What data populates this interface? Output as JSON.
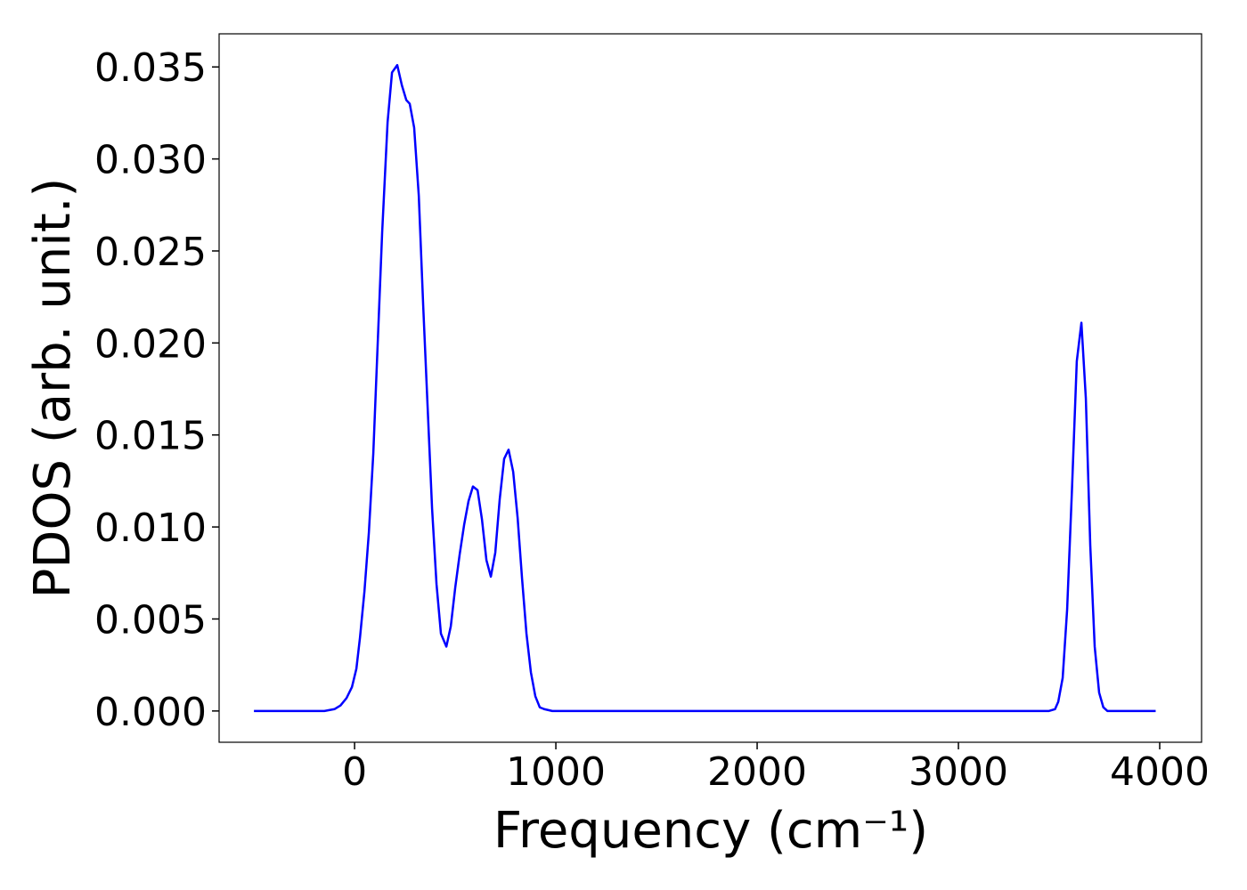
{
  "chart_data": {
    "type": "line",
    "xlabel": "Frequency (cm⁻¹)",
    "ylabel": "PDOS (arb. unit.)",
    "x": [
      -500,
      -400,
      -300,
      -200,
      -150,
      -100,
      -70,
      -40,
      -13,
      9,
      27,
      49,
      71,
      93,
      115,
      137,
      164,
      186,
      212,
      235,
      257,
      274,
      296,
      319,
      341,
      363,
      385,
      407,
      429,
      456,
      478,
      500,
      522,
      544,
      566,
      588,
      611,
      633,
      655,
      677,
      699,
      721,
      743,
      765,
      788,
      810,
      832,
      854,
      876,
      898,
      920,
      942,
      982,
      1500,
      2000,
      2500,
      3000,
      3450,
      3480,
      3496,
      3518,
      3540,
      3564,
      3588,
      3611,
      3633,
      3655,
      3677,
      3699,
      3720,
      3740,
      3980
    ],
    "series": [
      {
        "name": "PDOS",
        "color": "#0000ff",
        "values": [
          0,
          0,
          0,
          0,
          0,
          0.0001,
          0.0003,
          0.0007,
          0.0013,
          0.0023,
          0.004,
          0.0065,
          0.0097,
          0.014,
          0.02,
          0.026,
          0.032,
          0.0347,
          0.0351,
          0.034,
          0.0332,
          0.033,
          0.0317,
          0.028,
          0.022,
          0.0165,
          0.011,
          0.0069,
          0.0042,
          0.0035,
          0.0046,
          0.0067,
          0.0085,
          0.0101,
          0.0114,
          0.0122,
          0.012,
          0.0104,
          0.0082,
          0.0073,
          0.0086,
          0.0115,
          0.0137,
          0.0142,
          0.013,
          0.0105,
          0.0072,
          0.0042,
          0.0021,
          0.0008,
          0.0002,
          0.0001,
          0,
          0,
          0,
          0,
          0,
          0,
          0.0001,
          0.0005,
          0.0018,
          0.0055,
          0.012,
          0.019,
          0.0211,
          0.017,
          0.009,
          0.0035,
          0.001,
          0.0002,
          0,
          0
        ]
      }
    ],
    "xlim": [
      -673,
      4208
    ],
    "ylim": [
      -0.0017,
      0.0368
    ],
    "xticks": [
      0,
      1000,
      2000,
      3000,
      4000
    ],
    "yticks": [
      {
        "value": 0,
        "label": "0.000"
      },
      {
        "value": 0.005,
        "label": "0.005"
      },
      {
        "value": 0.01,
        "label": "0.010"
      },
      {
        "value": 0.015,
        "label": "0.015"
      },
      {
        "value": 0.02,
        "label": "0.020"
      },
      {
        "value": 0.025,
        "label": "0.025"
      },
      {
        "value": 0.03,
        "label": "0.030"
      },
      {
        "value": 0.035,
        "label": "0.035"
      }
    ]
  }
}
